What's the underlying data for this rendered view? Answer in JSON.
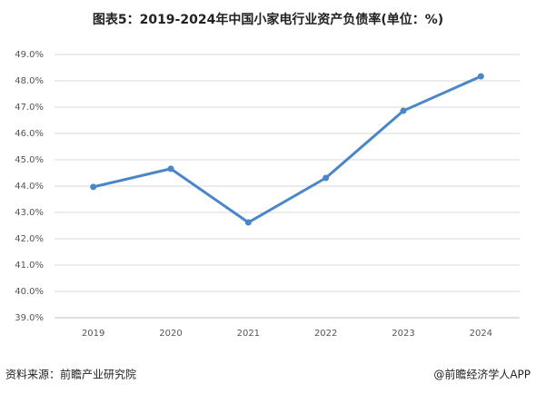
{
  "chart_data": {
    "type": "line",
    "title": "图表5：2019-2024年中国小家电行业资产负债率(单位：%)",
    "categories": [
      "2019",
      "2020",
      "2021",
      "2022",
      "2023",
      "2024"
    ],
    "series": [
      {
        "name": "资产负债率",
        "color": "#4a86c8",
        "values": [
          43.97,
          44.66,
          42.62,
          44.31,
          46.86,
          48.17
        ]
      }
    ],
    "ylim": [
      39,
      49
    ],
    "yticks": [
      {
        "value": 39,
        "label": "39.0%"
      },
      {
        "value": 40,
        "label": "40.0%"
      },
      {
        "value": 41,
        "label": "41.0%"
      },
      {
        "value": 42,
        "label": "42.0%"
      },
      {
        "value": 43,
        "label": "43.0%"
      },
      {
        "value": 44,
        "label": "44.0%"
      },
      {
        "value": 45,
        "label": "45.0%"
      },
      {
        "value": 46,
        "label": "46.0%"
      },
      {
        "value": 47,
        "label": "47.0%"
      },
      {
        "value": 48,
        "label": "48.0%"
      },
      {
        "value": 49,
        "label": "49.0%"
      }
    ],
    "grid": true,
    "source": "资料来源：前瞻产业研究院",
    "credit": "@前瞻经济学人APP"
  }
}
